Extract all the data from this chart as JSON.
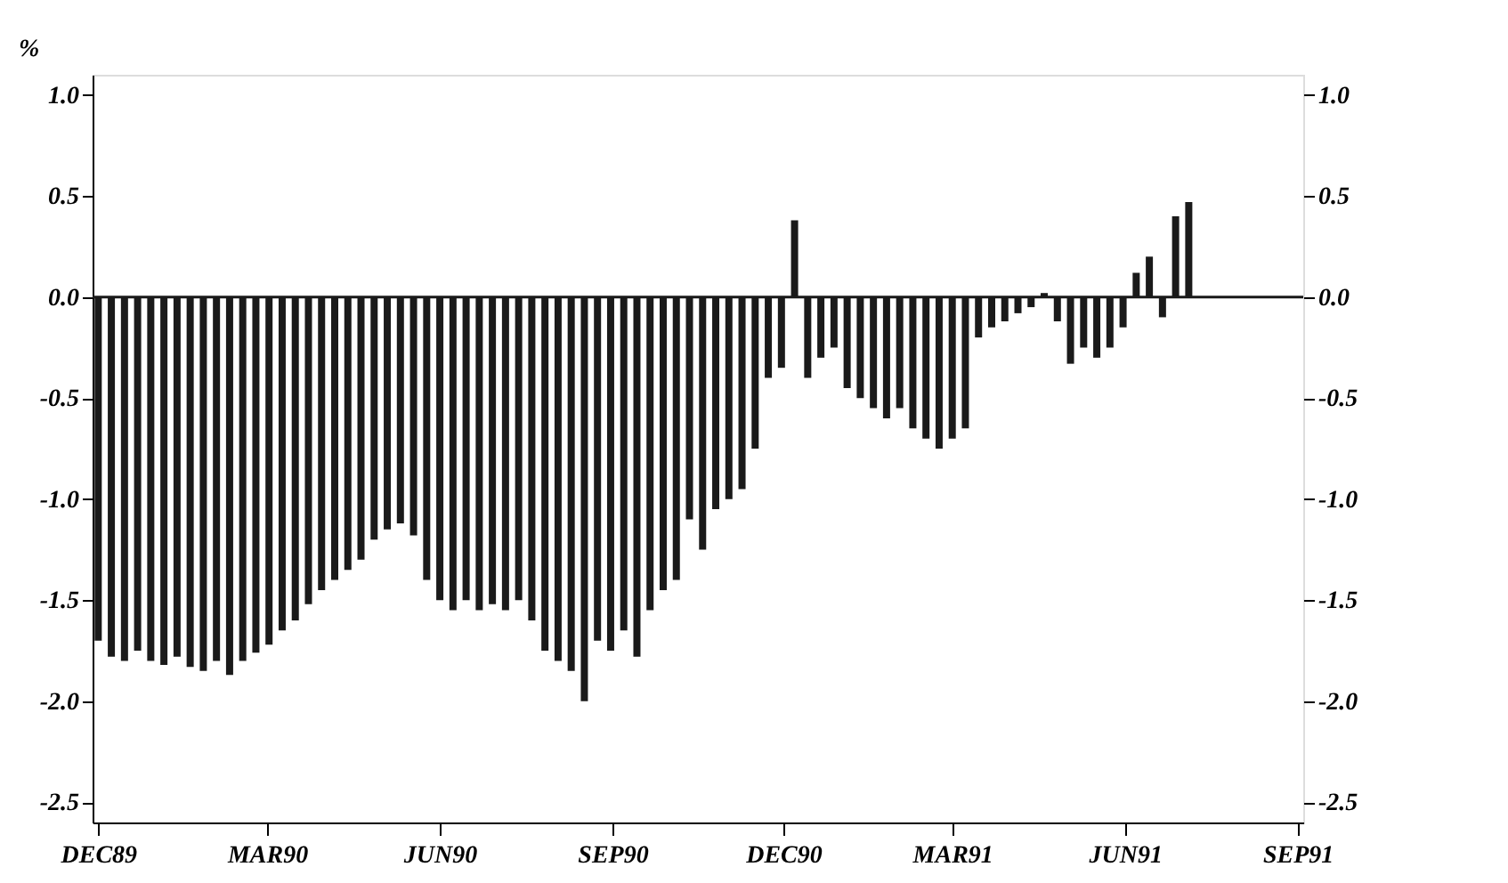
{
  "chart_data": {
    "type": "bar",
    "ylabel": "%",
    "color": "#1a1a1a",
    "x": [
      "1989-12-01",
      "1989-12-08",
      "1989-12-15",
      "1989-12-22",
      "1989-12-29",
      "1990-01-05",
      "1990-01-12",
      "1990-01-19",
      "1990-01-26",
      "1990-02-02",
      "1990-02-09",
      "1990-02-16",
      "1990-02-23",
      "1990-03-02",
      "1990-03-09",
      "1990-03-16",
      "1990-03-23",
      "1990-03-30",
      "1990-04-06",
      "1990-04-13",
      "1990-04-20",
      "1990-04-27",
      "1990-05-04",
      "1990-05-11",
      "1990-05-18",
      "1990-05-25",
      "1990-06-01",
      "1990-06-08",
      "1990-06-15",
      "1990-06-22",
      "1990-06-29",
      "1990-07-06",
      "1990-07-13",
      "1990-07-20",
      "1990-07-27",
      "1990-08-03",
      "1990-08-10",
      "1990-08-17",
      "1990-08-24",
      "1990-08-31",
      "1990-09-07",
      "1990-09-14",
      "1990-09-21",
      "1990-09-28",
      "1990-10-05",
      "1990-10-12",
      "1990-10-19",
      "1990-10-26",
      "1990-11-02",
      "1990-11-09",
      "1990-11-16",
      "1990-11-23",
      "1990-11-30",
      "1990-12-07",
      "1990-12-14",
      "1990-12-21",
      "1990-12-28",
      "1991-01-04",
      "1991-01-11",
      "1991-01-18",
      "1991-01-25",
      "1991-02-01",
      "1991-02-08",
      "1991-02-15",
      "1991-02-22",
      "1991-03-01",
      "1991-03-08",
      "1991-03-15",
      "1991-03-22",
      "1991-03-29",
      "1991-04-05",
      "1991-04-12",
      "1991-04-19",
      "1991-04-26",
      "1991-05-03",
      "1991-05-10",
      "1991-05-17",
      "1991-05-24",
      "1991-05-31",
      "1991-06-07",
      "1991-06-14",
      "1991-06-21",
      "1991-06-28",
      "1991-07-05"
    ],
    "values": [
      -1.7,
      -1.78,
      -1.8,
      -1.75,
      -1.8,
      -1.82,
      -1.78,
      -1.83,
      -1.85,
      -1.8,
      -1.87,
      -1.8,
      -1.76,
      -1.72,
      -1.65,
      -1.6,
      -1.52,
      -1.45,
      -1.4,
      -1.35,
      -1.3,
      -1.2,
      -1.15,
      -1.12,
      -1.18,
      -1.4,
      -1.5,
      -1.55,
      -1.5,
      -1.55,
      -1.52,
      -1.55,
      -1.5,
      -1.6,
      -1.75,
      -1.8,
      -1.85,
      -2.0,
      -1.7,
      -1.75,
      -1.65,
      -1.78,
      -1.55,
      -1.45,
      -1.4,
      -1.1,
      -1.25,
      -1.05,
      -1.0,
      -0.95,
      -0.75,
      -0.4,
      -0.35,
      0.38,
      -0.4,
      -0.3,
      -0.25,
      -0.45,
      -0.5,
      -0.55,
      -0.6,
      -0.55,
      -0.65,
      -0.7,
      -0.75,
      -0.7,
      -0.65,
      -0.2,
      -0.15,
      -0.12,
      -0.08,
      -0.05,
      0.02,
      -0.12,
      -0.33,
      -0.25,
      -0.3,
      -0.25,
      -0.15,
      0.12,
      0.2,
      -0.1,
      0.4,
      0.47
    ],
    "xlim": [
      "1989-11-28",
      "1991-09-04"
    ],
    "xticks": [
      {
        "value": "1989-12-01",
        "label": "DEC89"
      },
      {
        "value": "1990-03-01",
        "label": "MAR90"
      },
      {
        "value": "1990-06-01",
        "label": "JUN90"
      },
      {
        "value": "1990-09-01",
        "label": "SEP90"
      },
      {
        "value": "1990-12-01",
        "label": "DEC90"
      },
      {
        "value": "1991-03-01",
        "label": "MAR91"
      },
      {
        "value": "1991-06-01",
        "label": "JUN91"
      },
      {
        "value": "1991-09-01",
        "label": "SEP91"
      }
    ],
    "ylim": [
      -2.6,
      1.1
    ],
    "yticks": [
      {
        "value": 1.0,
        "label": "1.0"
      },
      {
        "value": 0.5,
        "label": "0.5"
      },
      {
        "value": 0.0,
        "label": "0.0"
      },
      {
        "value": -0.5,
        "label": "-0.5"
      },
      {
        "value": -1.0,
        "label": "-1.0"
      },
      {
        "value": -1.5,
        "label": "-1.5"
      },
      {
        "value": -2.0,
        "label": "-2.0"
      },
      {
        "value": -2.5,
        "label": "-2.5"
      }
    ],
    "y2lim": [
      -2.6,
      1.1
    ],
    "y2ticks": [
      {
        "value": 1.0,
        "label": "1.0"
      },
      {
        "value": 0.5,
        "label": "0.5"
      },
      {
        "value": 0.0,
        "label": "0.0"
      },
      {
        "value": -0.5,
        "label": "-0.5"
      },
      {
        "value": -1.0,
        "label": "-1.0"
      },
      {
        "value": -1.5,
        "label": "-1.5"
      },
      {
        "value": -2.0,
        "label": "-2.0"
      },
      {
        "value": -2.5,
        "label": "-2.5"
      }
    ],
    "ref_lines": [
      {
        "axis": "y",
        "value": 0,
        "color": "#1a1a1a"
      }
    ],
    "grid": false
  }
}
